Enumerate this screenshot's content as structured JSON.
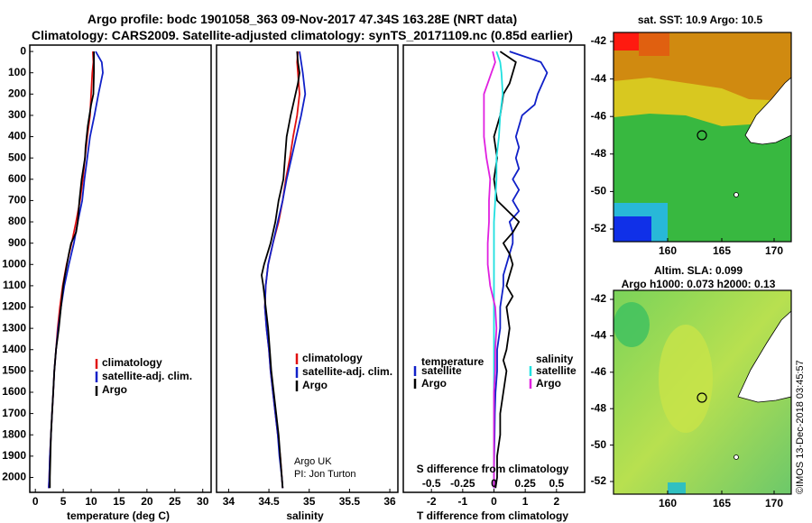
{
  "title_line1": "Argo profile: bodc 1901058_363 09-Nov-2017 47.34S 163.28E (NRT data)",
  "title_line2": "Climatology: CARS2009. Satellite-adjusted climatology: synTS_20171109.nc (0.85d earlier)",
  "depth_ticks": [
    "0",
    "100",
    "200",
    "300",
    "400",
    "500",
    "600",
    "700",
    "800",
    "900",
    "1000",
    "1100",
    "1200",
    "1300",
    "1400",
    "1500",
    "1600",
    "1700",
    "1800",
    "1900",
    "2000"
  ],
  "map_sst_title": "sat. SST: 10.9 Argo: 10.5",
  "map_sla_title1": "Altim. SLA: 0.099",
  "map_sla_title2": "Argo h1000: 0.073 h2000: 0.13",
  "map_lat_ticks": [
    "-42",
    "-44",
    "-46",
    "-48",
    "-50",
    "-52"
  ],
  "map_lon_ticks": [
    "160",
    "165",
    "170"
  ],
  "credit_line1": "Argo UK",
  "credit_line2": "PI: Jon Turton",
  "stamp": "©IMOS 13-Dec-2018 03:45:57",
  "colors": {
    "red": "#e01010",
    "blue": "#1020c8",
    "black": "#000000",
    "cyan": "#20e0e0",
    "magenta": "#e020e0"
  },
  "chart_data": [
    {
      "type": "line",
      "name": "temperature-panel",
      "xlabel": "temperature (deg C)",
      "ylabel": "",
      "xlim": [
        -1,
        31.5
      ],
      "ylim": [
        2070,
        -30
      ],
      "xticks": [
        "0",
        "5",
        "10",
        "15",
        "20",
        "25",
        "30"
      ],
      "legend": [
        "climatology",
        "satellite-adj. clim.",
        "Argo"
      ],
      "series": [
        {
          "name": "climatology",
          "color": "red",
          "points": [
            [
              10.3,
              0
            ],
            [
              10.4,
              50
            ],
            [
              10.2,
              100
            ],
            [
              10.0,
              200
            ],
            [
              9.8,
              300
            ],
            [
              9.3,
              400
            ],
            [
              8.9,
              500
            ],
            [
              8.5,
              600
            ],
            [
              8.0,
              700
            ],
            [
              7.3,
              800
            ],
            [
              6.5,
              900
            ],
            [
              5.6,
              1000
            ],
            [
              4.9,
              1100
            ],
            [
              4.4,
              1200
            ],
            [
              4.0,
              1300
            ],
            [
              3.7,
              1400
            ],
            [
              3.4,
              1500
            ],
            [
              3.2,
              1600
            ],
            [
              3.0,
              1700
            ],
            [
              2.8,
              1800
            ],
            [
              2.6,
              1900
            ],
            [
              2.5,
              2000
            ],
            [
              2.4,
              2050
            ]
          ]
        },
        {
          "name": "satellite-adj. clim.",
          "color": "blue",
          "points": [
            [
              10.8,
              0
            ],
            [
              11.9,
              50
            ],
            [
              12.1,
              100
            ],
            [
              11.3,
              200
            ],
            [
              10.6,
              300
            ],
            [
              9.8,
              400
            ],
            [
              9.3,
              500
            ],
            [
              8.8,
              600
            ],
            [
              8.4,
              700
            ],
            [
              7.6,
              800
            ],
            [
              6.9,
              900
            ],
            [
              6.0,
              1000
            ],
            [
              5.2,
              1100
            ],
            [
              4.6,
              1200
            ],
            [
              4.1,
              1300
            ],
            [
              3.7,
              1400
            ],
            [
              3.4,
              1500
            ],
            [
              3.2,
              1600
            ],
            [
              3.0,
              1700
            ],
            [
              2.8,
              1800
            ],
            [
              2.6,
              1900
            ],
            [
              2.5,
              2000
            ],
            [
              2.4,
              2050
            ]
          ]
        },
        {
          "name": "Argo",
          "color": "black",
          "points": [
            [
              10.5,
              0
            ],
            [
              10.5,
              100
            ],
            [
              10.4,
              200
            ],
            [
              10.0,
              250
            ],
            [
              9.4,
              350
            ],
            [
              9.0,
              450
            ],
            [
              8.9,
              500
            ],
            [
              8.3,
              600
            ],
            [
              7.9,
              700
            ],
            [
              7.6,
              800
            ],
            [
              7.3,
              850
            ],
            [
              6.4,
              900
            ],
            [
              6.0,
              950
            ],
            [
              5.3,
              1050
            ],
            [
              5.0,
              1100
            ],
            [
              4.6,
              1200
            ],
            [
              4.2,
              1300
            ],
            [
              3.7,
              1400
            ],
            [
              3.4,
              1500
            ],
            [
              3.2,
              1600
            ],
            [
              3.0,
              1700
            ],
            [
              2.8,
              1800
            ],
            [
              2.7,
              1900
            ],
            [
              2.6,
              2000
            ],
            [
              2.6,
              2050
            ]
          ]
        }
      ]
    },
    {
      "type": "line",
      "name": "salinity-panel",
      "xlabel": "salinity",
      "ylabel": "",
      "xlim": [
        33.85,
        36.1
      ],
      "ylim": [
        2070,
        -30
      ],
      "xticks": [
        "34",
        "34.5",
        "35",
        "35.5",
        "36"
      ],
      "legend": [
        "climatology",
        "satellite-adj. clim.",
        "Argo"
      ],
      "series": [
        {
          "name": "climatology",
          "color": "red",
          "points": [
            [
              34.86,
              0
            ],
            [
              34.85,
              50
            ],
            [
              34.86,
              100
            ],
            [
              34.88,
              200
            ],
            [
              34.85,
              300
            ],
            [
              34.8,
              400
            ],
            [
              34.76,
              500
            ],
            [
              34.71,
              600
            ],
            [
              34.67,
              700
            ],
            [
              34.62,
              800
            ],
            [
              34.55,
              900
            ],
            [
              34.49,
              1000
            ],
            [
              34.46,
              1100
            ],
            [
              34.45,
              1200
            ],
            [
              34.47,
              1300
            ],
            [
              34.5,
              1400
            ],
            [
              34.52,
              1500
            ],
            [
              34.55,
              1600
            ],
            [
              34.58,
              1700
            ],
            [
              34.61,
              1800
            ],
            [
              34.64,
              1900
            ],
            [
              34.66,
              2000
            ],
            [
              34.67,
              2050
            ]
          ]
        },
        {
          "name": "satellite-adj. clim.",
          "color": "blue",
          "points": [
            [
              34.88,
              0
            ],
            [
              34.9,
              50
            ],
            [
              34.92,
              100
            ],
            [
              34.95,
              200
            ],
            [
              34.9,
              300
            ],
            [
              34.84,
              400
            ],
            [
              34.78,
              500
            ],
            [
              34.72,
              600
            ],
            [
              34.67,
              700
            ],
            [
              34.61,
              800
            ],
            [
              34.55,
              900
            ],
            [
              34.49,
              1000
            ],
            [
              34.46,
              1100
            ],
            [
              34.45,
              1200
            ],
            [
              34.47,
              1300
            ],
            [
              34.5,
              1400
            ],
            [
              34.52,
              1500
            ],
            [
              34.55,
              1600
            ],
            [
              34.58,
              1700
            ],
            [
              34.61,
              1800
            ],
            [
              34.63,
              1900
            ],
            [
              34.66,
              2000
            ],
            [
              34.67,
              2050
            ]
          ]
        },
        {
          "name": "Argo",
          "color": "black",
          "points": [
            [
              34.85,
              0
            ],
            [
              34.86,
              50
            ],
            [
              34.88,
              100
            ],
            [
              34.86,
              150
            ],
            [
              34.8,
              250
            ],
            [
              34.77,
              300
            ],
            [
              34.72,
              400
            ],
            [
              34.7,
              500
            ],
            [
              34.68,
              600
            ],
            [
              34.62,
              700
            ],
            [
              34.58,
              800
            ],
            [
              34.52,
              900
            ],
            [
              34.44,
              1000
            ],
            [
              34.41,
              1050
            ],
            [
              34.43,
              1100
            ],
            [
              34.46,
              1200
            ],
            [
              34.49,
              1300
            ],
            [
              34.51,
              1400
            ],
            [
              34.53,
              1500
            ],
            [
              34.56,
              1600
            ],
            [
              34.59,
              1700
            ],
            [
              34.62,
              1800
            ],
            [
              34.64,
              1900
            ],
            [
              34.66,
              2000
            ],
            [
              34.67,
              2050
            ]
          ]
        }
      ]
    },
    {
      "type": "line",
      "name": "difference-panel",
      "xlabel": "T difference from climatology",
      "top_label": "S difference from climatology",
      "top_ticks": [
        "-0.5",
        "-0.25",
        "0",
        "0.25",
        "0.5"
      ],
      "xlim": [
        -2.9,
        2.9
      ],
      "ylim": [
        2070,
        -30
      ],
      "xticks": [
        "-2",
        "-1",
        "0",
        "1",
        "2"
      ],
      "legend_temperature": "temperature",
      "legend_salinity": "salinity",
      "legend_entries": [
        "satellite",
        "Argo"
      ],
      "series": [
        {
          "name": "T satellite",
          "color": "blue",
          "points": [
            [
              0.5,
              0
            ],
            [
              1.5,
              50
            ],
            [
              1.7,
              100
            ],
            [
              1.4,
              200
            ],
            [
              1.3,
              250
            ],
            [
              0.9,
              300
            ],
            [
              0.7,
              400
            ],
            [
              0.8,
              450
            ],
            [
              0.7,
              500
            ],
            [
              0.8,
              550
            ],
            [
              0.6,
              600
            ],
            [
              0.8,
              650
            ],
            [
              0.6,
              700
            ],
            [
              0.8,
              750
            ],
            [
              0.5,
              800
            ],
            [
              0.6,
              850
            ],
            [
              0.6,
              900
            ],
            [
              0.5,
              950
            ],
            [
              0.4,
              1000
            ],
            [
              0.3,
              1050
            ],
            [
              0.3,
              1100
            ],
            [
              0.2,
              1200
            ],
            [
              0.2,
              1300
            ],
            [
              0.1,
              1400
            ],
            [
              0.1,
              1500
            ],
            [
              0.05,
              1600
            ],
            [
              0.03,
              1700
            ],
            [
              0.02,
              1800
            ],
            [
              0.01,
              1900
            ],
            [
              0.0,
              2000
            ],
            [
              0.0,
              2050
            ]
          ]
        },
        {
          "name": "T Argo",
          "color": "black",
          "points": [
            [
              0.2,
              0
            ],
            [
              0.7,
              50
            ],
            [
              0.6,
              100
            ],
            [
              0.5,
              150
            ],
            [
              0.3,
              200
            ],
            [
              0.2,
              300
            ],
            [
              0.0,
              400
            ],
            [
              0.1,
              500
            ],
            [
              0.0,
              600
            ],
            [
              0.1,
              700
            ],
            [
              0.8,
              800
            ],
            [
              0.6,
              850
            ],
            [
              0.3,
              900
            ],
            [
              0.5,
              950
            ],
            [
              0.6,
              1000
            ],
            [
              0.5,
              1050
            ],
            [
              0.4,
              1100
            ],
            [
              0.6,
              1150
            ],
            [
              0.4,
              1200
            ],
            [
              0.5,
              1300
            ],
            [
              0.4,
              1400
            ],
            [
              0.3,
              1450
            ],
            [
              0.4,
              1500
            ],
            [
              0.3,
              1600
            ],
            [
              0.2,
              1700
            ],
            [
              0.2,
              1800
            ],
            [
              0.1,
              1900
            ],
            [
              0.1,
              2000
            ],
            [
              0.05,
              2050
            ]
          ]
        },
        {
          "name": "S satellite",
          "color": "cyan",
          "points": [
            [
              0.02,
              0
            ],
            [
              0.05,
              50
            ],
            [
              0.06,
              100
            ],
            [
              0.07,
              200
            ],
            [
              0.05,
              300
            ],
            [
              0.04,
              400
            ],
            [
              0.02,
              500
            ],
            [
              0.02,
              600
            ],
            [
              0.01,
              700
            ],
            [
              0.0,
              800
            ],
            [
              0.0,
              900
            ],
            [
              0.0,
              1000
            ],
            [
              0.0,
              1200
            ],
            [
              0.0,
              1400
            ],
            [
              0.0,
              1600
            ],
            [
              0.0,
              1800
            ],
            [
              0.0,
              2000
            ],
            [
              0.0,
              2050
            ]
          ]
        },
        {
          "name": "S Argo",
          "color": "magenta",
          "points": [
            [
              -0.01,
              0
            ],
            [
              0.01,
              50
            ],
            [
              -0.02,
              100
            ],
            [
              -0.08,
              200
            ],
            [
              -0.08,
              300
            ],
            [
              -0.08,
              400
            ],
            [
              -0.06,
              500
            ],
            [
              -0.03,
              600
            ],
            [
              -0.04,
              700
            ],
            [
              -0.04,
              800
            ],
            [
              -0.05,
              900
            ],
            [
              -0.05,
              1000
            ],
            [
              -0.03,
              1100
            ],
            [
              0.01,
              1200
            ],
            [
              0.02,
              1300
            ],
            [
              0.01,
              1400
            ],
            [
              0.01,
              1500
            ],
            [
              0.0,
              1600
            ],
            [
              0.0,
              1700
            ],
            [
              0.0,
              1800
            ],
            [
              0.0,
              2000
            ],
            [
              0.0,
              2050
            ]
          ]
        }
      ]
    }
  ]
}
